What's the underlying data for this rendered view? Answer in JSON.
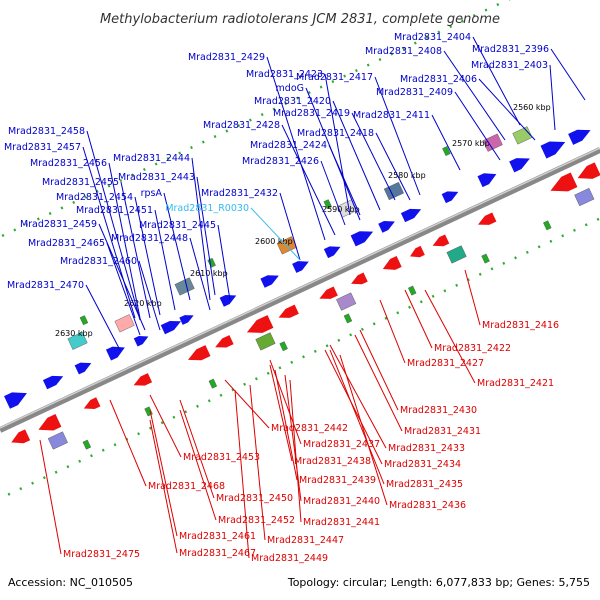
{
  "title": "Methylobacterium radiotolerans JCM 2831, complete genome",
  "footer": {
    "accession": "Accession: NC_010505",
    "topology": "Topology: circular; Length: 6,077,833 bp; Genes: 5,755"
  },
  "colors": {
    "forward_label": "#0000cc",
    "reverse_label": "#dd0000",
    "rna_label": "#33bbee",
    "backbone": "#888888",
    "forward_gene": "#1111ee",
    "reverse_gene": "#ee1111",
    "cog_green": "#22aa22"
  },
  "ticks": [
    "2560 kbp",
    "2570 kbp",
    "2580 kbp",
    "2590 kbp",
    "2600 kbp",
    "2610 kbp",
    "2620 kbp",
    "2630 kbp"
  ],
  "forward_labels": [
    "Mrad2831_2404",
    "Mrad2831_2396",
    "Mrad2831_2408",
    "Mrad2831_2403",
    "Mrad2831_2406",
    "Mrad2831_2429",
    "Mrad2831_2423",
    "Mrad2831_2417",
    "Mrad2831_2409",
    "mdoG",
    "Mrad2831_2420",
    "Mrad2831_2419",
    "Mrad2831_2411",
    "Mrad2831_2428",
    "Mrad2831_2418",
    "Mrad2831_2458",
    "Mrad2831_2424",
    "Mrad2831_2457",
    "Mrad2831_2444",
    "Mrad2831_2426",
    "Mrad2831_2456",
    "Mrad2831_2443",
    "Mrad2831_2455",
    "rpsA",
    "Mrad2831_2454",
    "Mrad2831_2432",
    "Mrad2831_2451",
    "Mrad2831_2459",
    "Mrad2831_2445",
    "Mrad2831_2448",
    "Mrad2831_2465",
    "Mrad2831_2460",
    "Mrad2831_2470"
  ],
  "rna_labels": [
    "Mrad2831_R0030"
  ],
  "reverse_labels": [
    "Mrad2831_2416",
    "Mrad2831_2422",
    "Mrad2831_2427",
    "Mrad2831_2421",
    "Mrad2831_2430",
    "Mrad2831_2431",
    "Mrad2831_2442",
    "Mrad2831_2437",
    "Mrad2831_2433",
    "Mrad2831_2453",
    "Mrad2831_2438",
    "Mrad2831_2434",
    "Mrad2831_2439",
    "Mrad2831_2435",
    "Mrad2831_2468",
    "Mrad2831_2450",
    "Mrad2831_2440",
    "Mrad2831_2436",
    "Mrad2831_2452",
    "Mrad2831_2441",
    "Mrad2831_2461",
    "Mrad2831_2447",
    "Mrad2831_2475",
    "Mrad2831_2467",
    "Mrad2831_2449"
  ]
}
